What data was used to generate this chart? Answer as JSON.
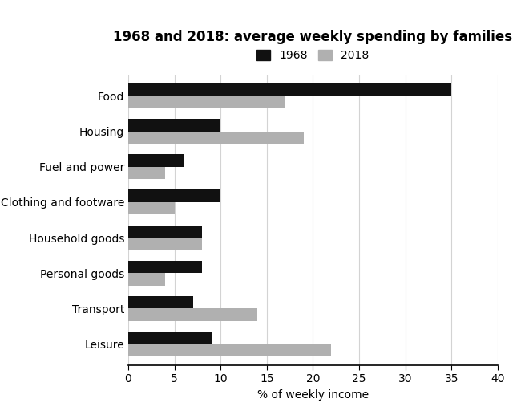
{
  "title": "1968 and 2018: average weekly spending by families",
  "xlabel": "% of weekly income",
  "categories": [
    "Food",
    "Housing",
    "Fuel and power",
    "Clothing and footware",
    "Household goods",
    "Personal goods",
    "Transport",
    "Leisure"
  ],
  "values_1968": [
    35,
    10,
    6,
    10,
    8,
    8,
    7,
    9
  ],
  "values_2018": [
    17,
    19,
    4,
    5,
    8,
    4,
    14,
    22
  ],
  "color_1968": "#111111",
  "color_2018": "#b0b0b0",
  "xlim": [
    0,
    40
  ],
  "xticks": [
    0,
    5,
    10,
    15,
    20,
    25,
    30,
    35,
    40
  ],
  "legend_labels": [
    "1968",
    "2018"
  ],
  "bar_height": 0.35,
  "figsize": [
    6.4,
    5.17
  ],
  "dpi": 100,
  "title_fontsize": 12,
  "label_fontsize": 10,
  "tick_fontsize": 10
}
